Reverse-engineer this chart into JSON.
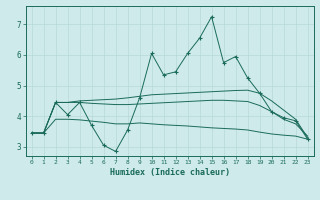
{
  "xlabel": "Humidex (Indice chaleur)",
  "xlim": [
    -0.5,
    23.5
  ],
  "ylim": [
    2.7,
    7.6
  ],
  "background_color": "#ceeaea",
  "grid_color": "#b8d8d8",
  "line_color": "#1a6b5a",
  "xticks": [
    0,
    1,
    2,
    3,
    4,
    5,
    6,
    7,
    8,
    9,
    10,
    11,
    12,
    13,
    14,
    15,
    16,
    17,
    18,
    19,
    20,
    21,
    22,
    23
  ],
  "yticks": [
    3,
    4,
    5,
    6,
    7
  ],
  "series_zigzag": {
    "x": [
      0,
      1,
      2,
      3,
      4,
      5,
      6,
      7,
      8,
      9,
      10,
      11,
      12,
      13,
      14,
      15,
      16,
      17,
      18,
      19,
      20,
      21,
      22,
      23
    ],
    "y": [
      3.45,
      3.45,
      4.45,
      4.05,
      4.45,
      3.7,
      3.05,
      2.85,
      3.55,
      4.6,
      6.05,
      5.35,
      5.45,
      6.05,
      6.55,
      7.25,
      5.75,
      5.95,
      5.25,
      4.75,
      4.15,
      3.95,
      3.85,
      3.25
    ]
  },
  "series_upper_smooth": {
    "x": [
      0,
      1,
      2,
      3,
      4,
      5,
      6,
      7,
      8,
      9,
      10,
      11,
      12,
      13,
      14,
      15,
      16,
      17,
      18,
      19,
      20,
      21,
      22,
      23
    ],
    "y": [
      3.45,
      3.45,
      4.45,
      4.45,
      4.5,
      4.52,
      4.54,
      4.56,
      4.6,
      4.65,
      4.7,
      4.72,
      4.74,
      4.76,
      4.78,
      4.8,
      4.82,
      4.84,
      4.85,
      4.75,
      4.5,
      4.2,
      3.9,
      3.3
    ]
  },
  "series_mid_smooth": {
    "x": [
      0,
      1,
      2,
      3,
      4,
      5,
      6,
      7,
      8,
      9,
      10,
      11,
      12,
      13,
      14,
      15,
      16,
      17,
      18,
      19,
      20,
      21,
      22,
      23
    ],
    "y": [
      3.45,
      3.45,
      4.45,
      4.45,
      4.45,
      4.42,
      4.4,
      4.38,
      4.38,
      4.4,
      4.42,
      4.44,
      4.46,
      4.48,
      4.5,
      4.52,
      4.52,
      4.5,
      4.48,
      4.35,
      4.15,
      3.9,
      3.75,
      3.35
    ]
  },
  "series_lower": {
    "x": [
      0,
      1,
      2,
      3,
      4,
      5,
      6,
      7,
      8,
      9,
      10,
      11,
      12,
      13,
      14,
      15,
      16,
      17,
      18,
      19,
      20,
      21,
      22,
      23
    ],
    "y": [
      3.45,
      3.45,
      3.9,
      3.9,
      3.88,
      3.84,
      3.8,
      3.75,
      3.75,
      3.78,
      3.75,
      3.72,
      3.7,
      3.68,
      3.65,
      3.62,
      3.6,
      3.58,
      3.55,
      3.48,
      3.42,
      3.38,
      3.35,
      3.25
    ]
  }
}
